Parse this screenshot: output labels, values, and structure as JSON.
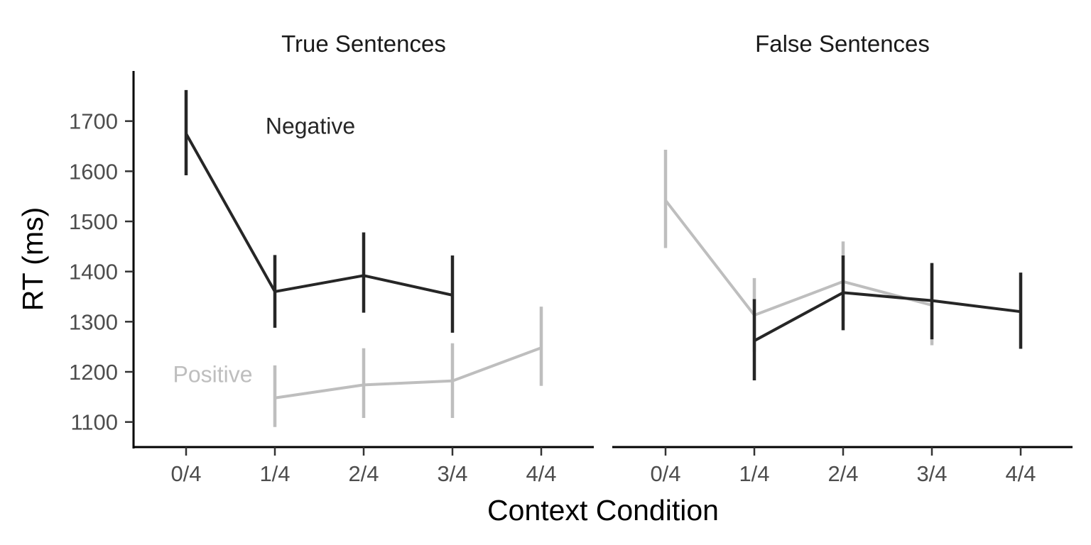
{
  "chart_data": {
    "type": "line",
    "xlabel": "Context Condition",
    "ylabel": "RT (ms)",
    "categories": [
      "0/4",
      "1/4",
      "2/4",
      "3/4",
      "4/4"
    ],
    "y_ticks": [
      1100,
      1200,
      1300,
      1400,
      1500,
      1600,
      1700
    ],
    "ylim": [
      1050,
      1800
    ],
    "grid": false,
    "legend": "none",
    "colors": {
      "Negative": "#262626",
      "Positive": "#bebebe"
    },
    "panels": [
      {
        "title": "True Sentences",
        "series": [
          {
            "name": "Negative",
            "values": [
              1675,
              1360,
              1392,
              1353,
              null
            ],
            "err_low": [
              1592,
              1288,
              1318,
              1278,
              null
            ],
            "err_high": [
              1762,
              1433,
              1478,
              1432,
              null
            ]
          },
          {
            "name": "Positive",
            "values": [
              null,
              1148,
              1174,
              1182,
              1248
            ],
            "err_low": [
              null,
              1090,
              1108,
              1108,
              1172
            ],
            "err_high": [
              null,
              1213,
              1247,
              1257,
              1330
            ]
          }
        ]
      },
      {
        "title": "False Sentences",
        "series": [
          {
            "name": "Positive",
            "values": [
              1542,
              1313,
              1380,
              1333,
              null
            ],
            "err_low": [
              1447,
              1240,
              1302,
              1253,
              null
            ],
            "err_high": [
              1643,
              1387,
              1460,
              1415,
              null
            ]
          },
          {
            "name": "Negative",
            "values": [
              null,
              1262,
              1358,
              1342,
              1320
            ],
            "err_low": [
              null,
              1183,
              1283,
              1265,
              1246
            ],
            "err_high": [
              null,
              1345,
              1432,
              1417,
              1398
            ]
          }
        ]
      }
    ],
    "annotations": [
      {
        "text": "Negative",
        "panel": 0,
        "series": "Negative",
        "x": 1.4,
        "y": 1690
      },
      {
        "text": "Positive",
        "panel": 0,
        "series": "Positive",
        "x": 0.3,
        "y": 1195
      }
    ]
  }
}
